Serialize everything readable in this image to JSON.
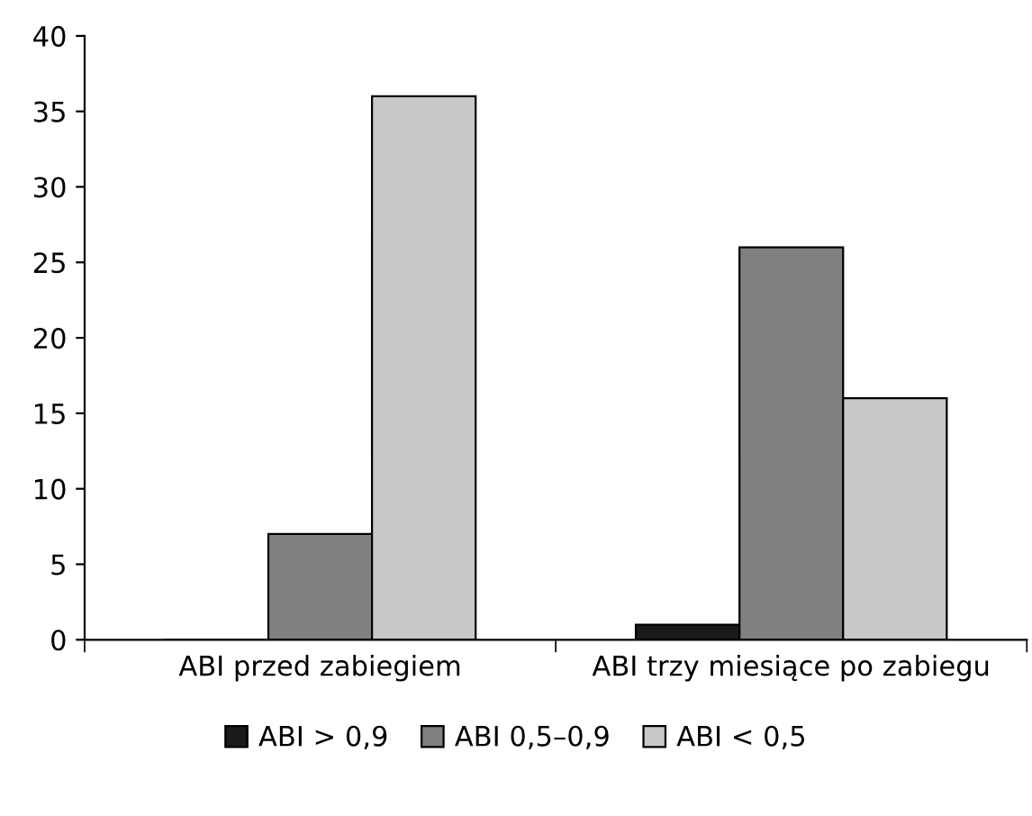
{
  "chart_data": {
    "type": "bar",
    "categories": [
      "ABI przed zabiegiem",
      "ABI trzy miesiące po zabiegu"
    ],
    "series": [
      {
        "name": "ABI > 0,9",
        "color": "#1a1a1a",
        "values": [
          0,
          1
        ]
      },
      {
        "name": "ABI 0,5–0,9",
        "color": "#808080",
        "values": [
          7,
          26
        ]
      },
      {
        "name": "ABI < 0,5",
        "color": "#c8c8c8",
        "values": [
          36,
          16
        ]
      }
    ],
    "ylim": [
      0,
      40
    ],
    "yticks": [
      0,
      5,
      10,
      15,
      20,
      25,
      30,
      35,
      40
    ],
    "grid": false,
    "legend": "bottom"
  }
}
